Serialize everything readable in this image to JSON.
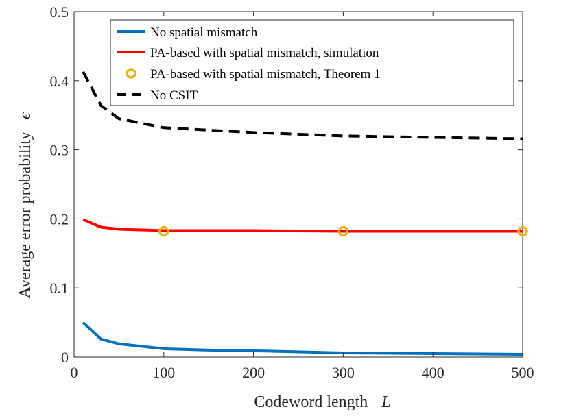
{
  "chart_data": {
    "type": "line",
    "title": "",
    "xlabel": "Codeword length",
    "xlabel_symbol": "L",
    "ylabel": "Average error probability",
    "ylabel_symbol": "ϵ",
    "xlim": [
      0,
      500
    ],
    "ylim": [
      0,
      0.5
    ],
    "xticks": [
      0,
      100,
      200,
      300,
      400,
      500
    ],
    "xtick_labels": [
      "0",
      "100",
      "200",
      "300",
      "400",
      "500"
    ],
    "yticks": [
      0,
      0.1,
      0.2,
      0.3,
      0.4,
      0.5
    ],
    "ytick_labels": [
      "0",
      "0.1",
      "0.2",
      "0.3",
      "0.4",
      "0.5"
    ],
    "grid": false,
    "legend_position": "top-right",
    "series": [
      {
        "name": "No spatial mismatch",
        "color": "#0072BD",
        "style": "solid",
        "x": [
          10,
          30,
          50,
          100,
          150,
          200,
          300,
          400,
          500
        ],
        "y": [
          0.05,
          0.026,
          0.019,
          0.012,
          0.01,
          0.009,
          0.006,
          0.005,
          0.004
        ]
      },
      {
        "name": "PA-based with spatial mismatch, simulation",
        "color": "#FF0000",
        "style": "solid",
        "x": [
          10,
          30,
          50,
          100,
          200,
          300,
          400,
          500
        ],
        "y": [
          0.199,
          0.188,
          0.185,
          0.183,
          0.183,
          0.182,
          0.182,
          0.182
        ]
      },
      {
        "name": "PA-based with spatial mismatch, Theorem 1",
        "color": "#EDB120",
        "style": "marker-circle",
        "x": [
          100,
          300,
          500
        ],
        "y": [
          0.182,
          0.182,
          0.182
        ]
      },
      {
        "name": "No CSIT",
        "color": "#000000",
        "style": "dashed",
        "x": [
          10,
          30,
          50,
          100,
          200,
          300,
          400,
          500
        ],
        "y": [
          0.413,
          0.364,
          0.345,
          0.332,
          0.325,
          0.32,
          0.318,
          0.316
        ]
      }
    ]
  }
}
